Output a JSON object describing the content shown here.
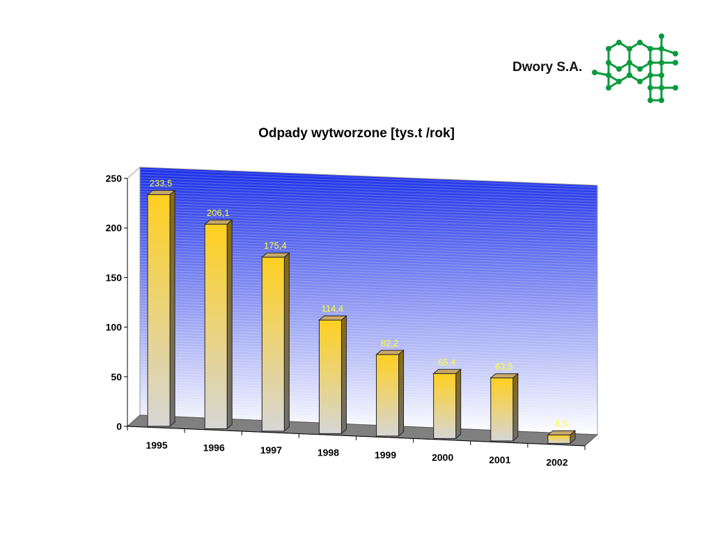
{
  "header": {
    "company": "Dwory S.A.",
    "logo_icon": "molecule-logo-icon",
    "logo_color": "#0a9a3c"
  },
  "chart_data": {
    "type": "bar",
    "title": "Odpady wytworzone [tys.t /rok]",
    "categories": [
      "1995",
      "1996",
      "1997",
      "1998",
      "1999",
      "2000",
      "2001",
      "2002"
    ],
    "values": [
      233.5,
      206.1,
      175.4,
      114.4,
      82.2,
      65.4,
      63.5,
      8.5
    ],
    "value_labels": [
      "233,5",
      "206,1",
      "175,4",
      "114,4",
      "82,2",
      "65,4",
      "63,5",
      "8,5"
    ],
    "yticks": [
      "0",
      "50",
      "100",
      "150",
      "200",
      "250"
    ],
    "ylim": [
      0,
      250
    ],
    "style": "3d-column",
    "grid": false,
    "legend": "none",
    "colors": {
      "bar_top": "#ffd020",
      "bar_bottom": "#d6d6d6",
      "back_wall_top": "#1a2ee6",
      "back_wall_bottom": "#ffffff",
      "floor": "#808080",
      "data_label": "#ffff33"
    }
  }
}
